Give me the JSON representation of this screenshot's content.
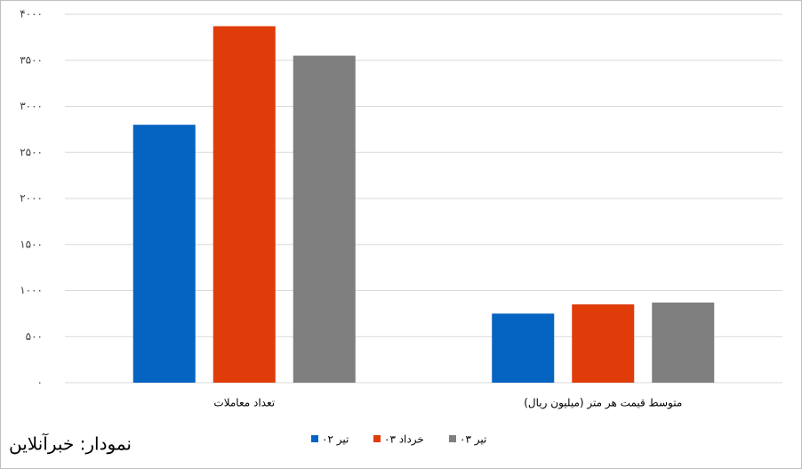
{
  "chart_data": {
    "type": "bar",
    "categories": [
      "تعداد معاملات",
      "متوسط قیمت هر متر (میلیون ریال)"
    ],
    "series": [
      {
        "name": "تیر ۰۲",
        "color": "#0563c1",
        "values": [
          2800,
          750
        ]
      },
      {
        "name": "خرداد ۰۳",
        "color": "#e03c0a",
        "values": [
          3870,
          850
        ]
      },
      {
        "name": "تیر ۰۳",
        "color": "#7f7f7f",
        "values": [
          3550,
          870
        ]
      }
    ],
    "ylim": [
      0,
      4000
    ],
    "yticks": [
      {
        "value": 0,
        "label": "۰"
      },
      {
        "value": 500,
        "label": "۵۰۰"
      },
      {
        "value": 1000,
        "label": "۱۰۰۰"
      },
      {
        "value": 1500,
        "label": "۱۵۰۰"
      },
      {
        "value": 2000,
        "label": "۲۰۰۰"
      },
      {
        "value": 2500,
        "label": "۲۵۰۰"
      },
      {
        "value": 3000,
        "label": "۳۰۰۰"
      },
      {
        "value": 3500,
        "label": "۳۵۰۰"
      },
      {
        "value": 4000,
        "label": "۴۰۰۰"
      }
    ],
    "grid": true,
    "legend": "bottom",
    "source": "نمودار: خبرآنلاین"
  }
}
